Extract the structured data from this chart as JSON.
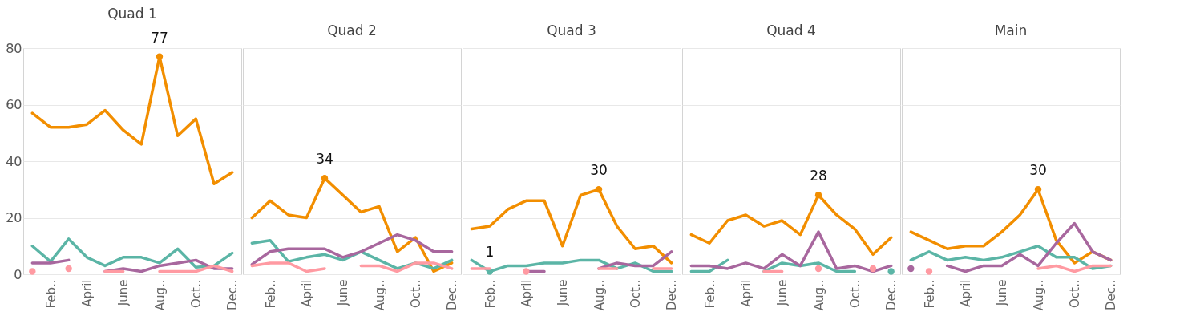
{
  "chart_data": [
    {
      "type": "line",
      "title": "Quad 1",
      "categories": [
        null,
        "Feb..",
        null,
        "April",
        null,
        "June",
        null,
        "Aug..",
        null,
        "Oct..",
        null,
        "Dec.."
      ],
      "ylim": [
        0,
        80
      ],
      "yticks": [
        0,
        20,
        40,
        60,
        80
      ],
      "grid": "y",
      "series": [
        {
          "color": "#f28e00",
          "values": [
            57,
            52,
            52,
            53,
            58,
            51,
            46,
            77,
            49,
            55,
            32,
            36
          ],
          "value_labels": [
            null,
            null,
            null,
            null,
            null,
            null,
            null,
            "77",
            null,
            null,
            null,
            null
          ]
        },
        {
          "color": "#5bb5a6",
          "values": [
            10,
            4.5,
            12.5,
            6,
            3,
            6,
            6,
            4,
            9,
            2.5,
            3,
            7.5
          ]
        },
        {
          "color": "#a8679e",
          "values": [
            4,
            4,
            5,
            null,
            1,
            2,
            1,
            3,
            4,
            5,
            2,
            2
          ]
        },
        {
          "color": "#ff9aa2",
          "values": [
            1,
            null,
            2,
            null,
            1,
            1,
            null,
            1,
            1,
            1,
            3,
            1
          ]
        }
      ]
    },
    {
      "type": "line",
      "title": "Quad 2",
      "categories": [
        null,
        "Feb..",
        null,
        "April",
        null,
        "June",
        null,
        "Aug..",
        null,
        "Oct..",
        null,
        "Dec.."
      ],
      "ylim": [
        0,
        80
      ],
      "yticks": [
        0,
        20,
        40,
        60,
        80
      ],
      "grid": "y",
      "tick_labels": "x",
      "series": [
        {
          "color": "#f28e00",
          "values": [
            20,
            26,
            21,
            20,
            34,
            28,
            22,
            24,
            8,
            13,
            1,
            4
          ],
          "value_labels": [
            null,
            null,
            null,
            null,
            "34",
            null,
            null,
            null,
            null,
            null,
            null,
            null
          ]
        },
        {
          "color": "#5bb5a6",
          "values": [
            11,
            12,
            4.5,
            6,
            7,
            5,
            8,
            5,
            2,
            4,
            2,
            5
          ]
        },
        {
          "color": "#a8679e",
          "values": [
            3.5,
            8,
            9,
            9,
            9,
            6,
            8,
            11,
            14,
            12,
            8,
            8
          ]
        },
        {
          "color": "#ff9aa2",
          "values": [
            3,
            4,
            4,
            1,
            2,
            null,
            3,
            3,
            1,
            4,
            4,
            2
          ]
        }
      ]
    },
    {
      "type": "line",
      "title": "Quad 3",
      "categories": [
        null,
        "Feb..",
        null,
        "April",
        null,
        "June",
        null,
        "Aug..",
        null,
        "Oct..",
        null,
        "Dec.."
      ],
      "ylim": [
        0,
        80
      ],
      "yticks": [
        0,
        20,
        40,
        60,
        80
      ],
      "grid": "y",
      "tick_labels": "x",
      "series": [
        {
          "color": "#f28e00",
          "values": [
            16,
            17,
            23,
            26,
            26,
            10,
            28,
            30,
            17,
            9,
            10,
            4
          ],
          "value_labels": [
            null,
            null,
            null,
            null,
            null,
            null,
            null,
            "30",
            null,
            null,
            null,
            null
          ]
        },
        {
          "color": "#5bb5a6",
          "values": [
            5,
            1,
            3,
            3,
            4,
            4,
            5,
            5,
            2,
            4,
            1,
            1
          ],
          "value_labels": [
            null,
            "1",
            null,
            null,
            null,
            null,
            null,
            null,
            null,
            null,
            null,
            null
          ]
        },
        {
          "color": "#a8679e",
          "values": [
            null,
            null,
            null,
            1,
            1,
            null,
            null,
            2,
            4,
            3,
            3,
            8
          ]
        },
        {
          "color": "#ff9aa2",
          "values": [
            2,
            2,
            null,
            1,
            null,
            null,
            null,
            2,
            2,
            null,
            2,
            2
          ]
        }
      ]
    },
    {
      "type": "line",
      "title": "Quad 4",
      "categories": [
        null,
        "Feb..",
        null,
        "April",
        null,
        "June",
        null,
        "Aug..",
        null,
        "Oct..",
        null,
        "Dec.."
      ],
      "ylim": [
        0,
        80
      ],
      "yticks": [
        0,
        20,
        40,
        60,
        80
      ],
      "grid": "y",
      "tick_labels": "x",
      "series": [
        {
          "color": "#f28e00",
          "values": [
            14,
            11,
            19,
            21,
            17,
            19,
            14,
            28,
            21,
            16,
            7,
            13
          ],
          "value_labels": [
            null,
            null,
            null,
            null,
            null,
            null,
            null,
            "28",
            null,
            null,
            null,
            null
          ]
        },
        {
          "color": "#5bb5a6",
          "values": [
            1,
            1,
            5,
            null,
            1,
            4,
            3,
            4,
            1,
            1,
            null,
            1
          ]
        },
        {
          "color": "#a8679e",
          "values": [
            3,
            3,
            2,
            4,
            2,
            7,
            3,
            15,
            2,
            3,
            1,
            3
          ]
        },
        {
          "color": "#ff9aa2",
          "values": [
            null,
            null,
            null,
            null,
            1,
            1,
            null,
            2,
            null,
            null,
            2,
            null
          ]
        }
      ]
    },
    {
      "type": "line",
      "title": "Main",
      "categories": [
        null,
        "Feb..",
        null,
        "April",
        null,
        "June",
        null,
        "Aug..",
        null,
        "Oct..",
        null,
        "Dec.."
      ],
      "ylim": [
        0,
        80
      ],
      "yticks": [
        0,
        20,
        40,
        60,
        80
      ],
      "grid": "y",
      "tick_labels": "x",
      "series": [
        {
          "color": "#f28e00",
          "values": [
            15,
            12,
            9,
            10,
            10,
            15,
            21,
            30,
            12,
            4,
            8,
            5
          ],
          "value_labels": [
            null,
            null,
            null,
            null,
            null,
            null,
            null,
            "30",
            null,
            null,
            null,
            null
          ]
        },
        {
          "color": "#5bb5a6",
          "values": [
            5,
            8,
            5,
            6,
            5,
            6,
            8,
            10,
            6,
            6,
            2,
            3
          ]
        },
        {
          "color": "#a8679e",
          "values": [
            2,
            null,
            3,
            1,
            3,
            3,
            7,
            3,
            11,
            18,
            8,
            5
          ]
        },
        {
          "color": "#ff9aa2",
          "values": [
            null,
            1,
            null,
            null,
            null,
            null,
            null,
            2,
            3,
            1,
            3,
            3
          ]
        }
      ]
    }
  ]
}
